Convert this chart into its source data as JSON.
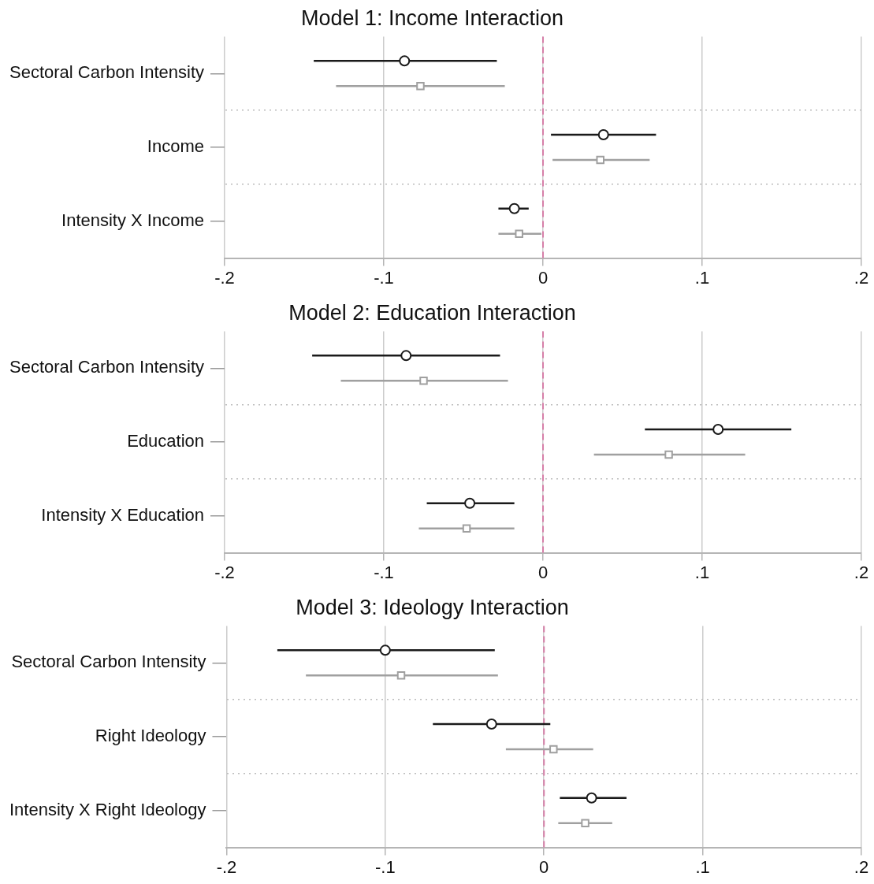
{
  "chart_data": [
    {
      "type": "scatter",
      "title": "Model 1: Income Interaction",
      "orientation": "horizontal",
      "categories": [
        "Sectoral Carbon Intensity",
        "Income",
        "Intensity X Income"
      ],
      "xlim": [
        -0.2,
        0.2
      ],
      "xticks": [
        {
          "value": -0.2,
          "label": "-.2"
        },
        {
          "value": -0.1,
          "label": "-.1"
        },
        {
          "value": 0,
          "label": "0"
        },
        {
          "value": 0.1,
          "label": ".1"
        },
        {
          "value": 0.2,
          "label": ".2"
        }
      ],
      "grid": true,
      "legend": false,
      "ref_lines": [
        {
          "axis": "x",
          "value": 0,
          "color": "#d67fa8",
          "line_style": "dashed"
        }
      ],
      "series": [
        {
          "color": "#1a1a1a",
          "marker": "circle",
          "values": [
            -0.087,
            0.038,
            -0.018
          ],
          "errors": [
            [
              -0.144,
              -0.029
            ],
            [
              0.005,
              0.071
            ],
            [
              -0.028,
              -0.009
            ]
          ]
        },
        {
          "color": "#a0a0a0",
          "marker": "square",
          "values": [
            -0.077,
            0.036,
            -0.015
          ],
          "errors": [
            [
              -0.13,
              -0.024
            ],
            [
              0.006,
              0.067
            ],
            [
              -0.028,
              -0.001
            ]
          ]
        }
      ]
    },
    {
      "type": "scatter",
      "title": "Model 2: Education Interaction",
      "orientation": "horizontal",
      "categories": [
        "Sectoral Carbon Intensity",
        "Education",
        "Intensity X Education"
      ],
      "xlim": [
        -0.2,
        0.2
      ],
      "xticks": [
        {
          "value": -0.2,
          "label": "-.2"
        },
        {
          "value": -0.1,
          "label": "-.1"
        },
        {
          "value": 0,
          "label": "0"
        },
        {
          "value": 0.1,
          "label": ".1"
        },
        {
          "value": 0.2,
          "label": ".2"
        }
      ],
      "grid": true,
      "legend": false,
      "ref_lines": [
        {
          "axis": "x",
          "value": 0,
          "color": "#d67fa8",
          "line_style": "dashed"
        }
      ],
      "series": [
        {
          "color": "#1a1a1a",
          "marker": "circle",
          "values": [
            -0.086,
            0.11,
            -0.046
          ],
          "errors": [
            [
              -0.145,
              -0.027
            ],
            [
              0.064,
              0.156
            ],
            [
              -0.073,
              -0.018
            ]
          ]
        },
        {
          "color": "#a0a0a0",
          "marker": "square",
          "values": [
            -0.075,
            0.079,
            -0.048
          ],
          "errors": [
            [
              -0.127,
              -0.022
            ],
            [
              0.032,
              0.127
            ],
            [
              -0.078,
              -0.018
            ]
          ]
        }
      ]
    },
    {
      "type": "scatter",
      "title": "Model 3: Ideology Interaction",
      "orientation": "horizontal",
      "categories": [
        "Sectoral Carbon Intensity",
        "Right Ideology",
        "Intensity X Right Ideology"
      ],
      "xlim": [
        -0.2,
        0.2
      ],
      "xticks": [
        {
          "value": -0.2,
          "label": "-.2"
        },
        {
          "value": -0.1,
          "label": "-.1"
        },
        {
          "value": 0,
          "label": "0"
        },
        {
          "value": 0.1,
          "label": ".1"
        },
        {
          "value": 0.2,
          "label": ".2"
        }
      ],
      "grid": true,
      "legend": false,
      "ref_lines": [
        {
          "axis": "x",
          "value": 0,
          "color": "#d67fa8",
          "line_style": "dashed"
        }
      ],
      "series": [
        {
          "color": "#1a1a1a",
          "marker": "circle",
          "values": [
            -0.1,
            -0.033,
            0.03
          ],
          "errors": [
            [
              -0.168,
              -0.031
            ],
            [
              -0.07,
              0.004
            ],
            [
              0.01,
              0.052
            ]
          ]
        },
        {
          "color": "#a0a0a0",
          "marker": "square",
          "values": [
            -0.09,
            0.006,
            0.026
          ],
          "errors": [
            [
              -0.15,
              -0.029
            ],
            [
              -0.024,
              0.031
            ],
            [
              0.009,
              0.043
            ]
          ]
        }
      ]
    }
  ]
}
